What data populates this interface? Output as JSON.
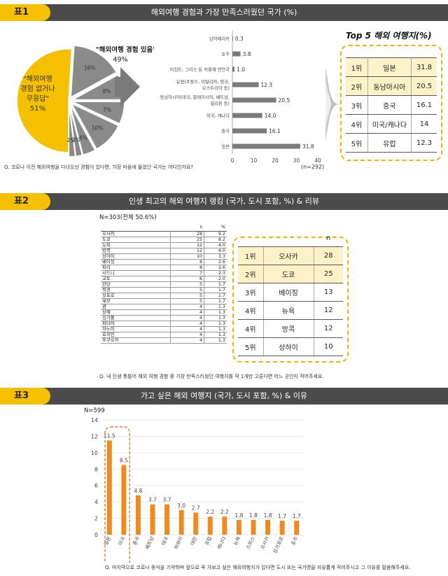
{
  "table1": {
    "tag": "표1",
    "title": "해외여행 경험과 가장 만족스러웠던 국가 (%)",
    "pie": {
      "slices": [
        {
          "label": "\"해외여행 경험 없거나 무응답\"",
          "value": 51,
          "color": "#f5c000"
        },
        {
          "label": "16%",
          "value": 16,
          "color": "#8a8a8a"
        },
        {
          "label": "8%",
          "value": 8,
          "color": "#8a8a8a"
        },
        {
          "label": "7%",
          "value": 7,
          "color": "#8a8a8a"
        },
        {
          "label": "10%",
          "value": 10,
          "color": "#8a8a8a"
        },
        {
          "label": "4%",
          "value": 4,
          "color": "#8a8a8a"
        },
        {
          "label": "2%",
          "value": 2,
          "color": "#8a8a8a"
        },
        {
          "label": "2%",
          "value": 2,
          "color": "#8a8a8a"
        }
      ],
      "no_exp_label_1": "\"해외여행",
      "no_exp_label_2": "경험 없거나",
      "no_exp_label_3": "무응답\"",
      "no_exp_pct": "51%",
      "exp_label": "\"해외여행 경험 있음\"",
      "exp_pct": "49%"
    },
    "chart_data": {
      "type": "bar",
      "orientation": "horizontal",
      "categories": [
        "남아메리카",
        "호주",
        "이집트, 그리스 등 지중해 연안국",
        "유럽(프랑스, 이탈리아, 영국, 오스트리아 등)",
        "동남아시아(태국, 말레이시아, 베트남, 필리핀 등)",
        "미국, 캐나다",
        "중국",
        "일본"
      ],
      "category_lines": [
        [
          "남아메리카"
        ],
        [
          "호주"
        ],
        [
          "이집트, 그리스 등 지중해 연안국"
        ],
        [
          "유럽(프랑스, 이탈리아, 영국,",
          "오스트리아 등)"
        ],
        [
          "동남아시아(태국, 말레이시아, 베트남,",
          "필리핀 등)"
        ],
        [
          "미국, 캐나다"
        ],
        [
          "중국"
        ],
        [
          "일본"
        ]
      ],
      "values": [
        0.3,
        3.8,
        1.0,
        12.3,
        20.5,
        14.0,
        16.1,
        31.8
      ],
      "value_labels": [
        "0.3",
        "3.8",
        "1.0",
        "12.3",
        "20.5",
        "14.0",
        "16.1",
        "31.8"
      ],
      "xlim": [
        0,
        40
      ],
      "ticks": [
        "0",
        "10",
        "20",
        "30",
        "40"
      ]
    },
    "n": "(n=292)",
    "question": "Q. 코로나 이전 해외여행을 다녀오신 경험이 있다면, 가장 마음에 들었던 국가는 어디인가요?",
    "top5_title": "Top 5 해외 여행지(%)",
    "top5": [
      {
        "rank": "1위",
        "name": "일본",
        "value": "31.8"
      },
      {
        "rank": "2위",
        "name": "동남아시아",
        "value": "20.5"
      },
      {
        "rank": "3위",
        "name": "중국",
        "value": "16.1"
      },
      {
        "rank": "4위",
        "name": "미국/캐나다",
        "value": "14"
      },
      {
        "rank": "5위",
        "name": "유럽",
        "value": "12.3"
      }
    ]
  },
  "table2": {
    "tag": "표2",
    "title": "인생 최고의 해외 여행지 랭킹 (국가, 도시 포함, %) & 리뷰",
    "n_label": "N=303(전체 50.6%)",
    "col_n": "n",
    "col_pct": "%",
    "rows": [
      [
        "오사카",
        "28",
        "9.2"
      ],
      [
        "도쿄",
        "25",
        "8.2"
      ],
      [
        "뉴욕",
        "12",
        "4.0"
      ],
      [
        "방콕",
        "12",
        "4.0"
      ],
      [
        "상하이",
        "10",
        "3.3"
      ],
      [
        "베이징",
        "8",
        "2.6"
      ],
      [
        "파리",
        "8",
        "2.6"
      ],
      [
        "시드니",
        "7",
        "2.3"
      ],
      [
        "교토",
        "6",
        "2.0"
      ],
      [
        "런던",
        "5",
        "1.7"
      ],
      [
        "북경",
        "5",
        "1.7"
      ],
      [
        "삿포로",
        "5",
        "1.7"
      ],
      [
        "세부",
        "5",
        "1.7"
      ],
      [
        "괌",
        "4",
        "1.3"
      ],
      [
        "상해",
        "4",
        "1.3"
      ],
      [
        "싱가폴",
        "4",
        "1.3"
      ],
      [
        "파타야",
        "4",
        "1.3"
      ],
      [
        "하노이",
        "4",
        "1.3"
      ],
      [
        "호치민",
        "4",
        "1.3"
      ],
      [
        "후쿠오카",
        "4",
        "1.3"
      ]
    ],
    "rank_col_n": "n",
    "ranking": [
      {
        "rank": "1위",
        "name": "오사카",
        "value": "28"
      },
      {
        "rank": "2위",
        "name": "도쿄",
        "value": "25"
      },
      {
        "rank": "3위",
        "name": "베이징",
        "value": "13"
      },
      {
        "rank": "4위",
        "name": "뉴욕",
        "value": "12"
      },
      {
        "rank": "4위",
        "name": "방콕",
        "value": "12"
      },
      {
        "rank": "5위",
        "name": "상하이",
        "value": "10"
      }
    ],
    "question": "Q. 내 인생 통틀어 해외 여행 경험 중 가장 만족스러웠던 여행지를 딱 1개만 고른다면 어느 곳인지 적어주세요."
  },
  "table3": {
    "tag": "표3",
    "title": "가고 싶은 해외 여행지 (국가, 도시 포함, %) & 이유",
    "n_label": "N=599",
    "chart_data": {
      "type": "bar",
      "categories": [
        "일본",
        "미국",
        "중국",
        "베트남",
        "태국",
        "하와이",
        "대만",
        "유럽",
        "캐나다",
        "뉴욕",
        "스위스",
        "오사카",
        "싱가포르",
        "호주"
      ],
      "values": [
        11.5,
        8.5,
        4.8,
        3.7,
        3.7,
        3.0,
        2.7,
        2.2,
        2.2,
        1.8,
        1.8,
        1.8,
        1.7,
        1.7
      ],
      "value_labels": [
        "11.5",
        "8.5",
        "4.8",
        "3.7",
        "3.7",
        "3.0",
        "2.7",
        "2.2",
        "2.2",
        "1.8",
        "1.8",
        "1.8",
        "1.7",
        "1.7"
      ],
      "ylim": [
        0,
        14
      ],
      "yticks": [
        "0",
        "2",
        "4",
        "6",
        "8",
        "10",
        "12",
        "14"
      ],
      "bar_color": "#f08a1e"
    },
    "question": "Q. 마지막으로 코로나 종식을 기약하며 앞으로 꼭 가보고 싶은 해외여행지가 있다면 도시 또는 국가명을 자유롭게 적어주시고 그 이유를 말씀해주세요."
  },
  "colors": {
    "accent": "#f5c000",
    "header": "#4b4b4b",
    "bar_gray": "#7a7a7a",
    "bar_orange": "#f08a1e"
  }
}
